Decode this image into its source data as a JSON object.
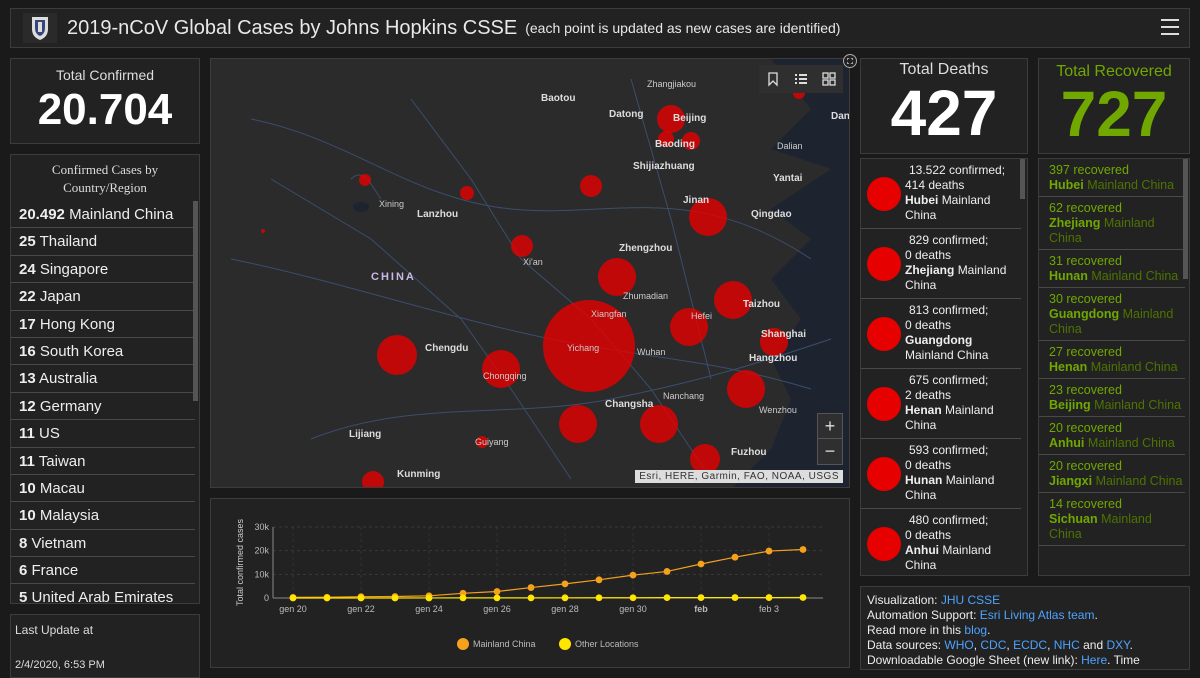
{
  "header": {
    "title": "2019-nCoV Global Cases by Johns Hopkins CSSE",
    "subtitle": "(each point is updated as new cases are identified)"
  },
  "total_confirmed": {
    "label": "Total Confirmed",
    "value": "20.704"
  },
  "country_panel": {
    "title_line1": "Confirmed Cases by",
    "title_line2": "Country/Region",
    "rows": [
      {
        "count": "20.492",
        "name": "Mainland China"
      },
      {
        "count": "25",
        "name": "Thailand"
      },
      {
        "count": "24",
        "name": "Singapore"
      },
      {
        "count": "22",
        "name": "Japan"
      },
      {
        "count": "17",
        "name": "Hong Kong"
      },
      {
        "count": "16",
        "name": "South Korea"
      },
      {
        "count": "13",
        "name": "Australia"
      },
      {
        "count": "12",
        "name": "Germany"
      },
      {
        "count": "11",
        "name": "US"
      },
      {
        "count": "11",
        "name": "Taiwan"
      },
      {
        "count": "10",
        "name": "Macau"
      },
      {
        "count": "10",
        "name": "Malaysia"
      },
      {
        "count": "8",
        "name": "Vietnam"
      },
      {
        "count": "6",
        "name": "France"
      },
      {
        "count": "5",
        "name": "United Arab Emirates"
      }
    ]
  },
  "last_update": {
    "label": "Last Update at",
    "value": "2/4/2020, 6:53 PM"
  },
  "map": {
    "country_label": "CHINA",
    "attribution": "Esri, HERE, Garmin, FAO, NOAA, USGS",
    "zoom_in": "+",
    "zoom_out": "−",
    "cities": {
      "baotou": "Baotou",
      "zhangjiakou": "Zhangjiakou",
      "datong": "Datong",
      "beijing": "Beijing",
      "baoding": "Baoding",
      "dalian": "Dalian",
      "shijiazhuang": "Shijiazhuang",
      "yantai": "Yantai",
      "jinan": "Jinan",
      "qingdao": "Qingdao",
      "xining": "Xining",
      "lanzhou": "Lanzhou",
      "xian": "Xi'an",
      "zhengzhou": "Zhengzhou",
      "zhumadian": "Zhumadian",
      "taizhou": "Taizhou",
      "xiangfan": "Xiangfan",
      "hefei": "Hefei",
      "shanghai": "Shanghai",
      "chengdu": "Chengdu",
      "yichang": "Yichang",
      "wuhan": "Wuhan",
      "hangzhou": "Hangzhou",
      "chongqing": "Chongqing",
      "nanchang": "Nanchang",
      "wenzhou": "Wenzhou",
      "changsha": "Changsha",
      "lijiang": "Lijiang",
      "guiyang": "Guiyang",
      "fuzhou": "Fuzhou",
      "kunming": "Kunming",
      "dan": "Dan"
    }
  },
  "chart_data": {
    "type": "line",
    "ylabel": "Total confirmed cases",
    "yticks": [
      "0",
      "10k",
      "20k",
      "30k"
    ],
    "ylim": [
      0,
      30000
    ],
    "xtick_labels": [
      "gen 20",
      "gen 22",
      "gen 24",
      "gen 26",
      "gen 28",
      "gen 30",
      "feb",
      "feb 3"
    ],
    "x": [
      "gen 20",
      "gen 21",
      "gen 22",
      "gen 23",
      "gen 24",
      "gen 25",
      "gen 26",
      "gen 27",
      "gen 28",
      "gen 29",
      "gen 30",
      "gen 31",
      "feb 1",
      "feb 2",
      "feb 3",
      "feb 4"
    ],
    "series": [
      {
        "name": "Mainland China",
        "color": "#f5a11c",
        "values": [
          278,
          326,
          547,
          639,
          916,
          1979,
          2737,
          4409,
          5970,
          7678,
          9658,
          11221,
          14375,
          17238,
          19827,
          20492
        ]
      },
      {
        "name": "Other Locations",
        "color": "#ffe600",
        "values": [
          4,
          6,
          8,
          14,
          25,
          40,
          57,
          64,
          87,
          105,
          118,
          153,
          173,
          183,
          188,
          212
        ]
      }
    ]
  },
  "total_deaths": {
    "label": "Total Deaths",
    "value": "427"
  },
  "deaths_list": [
    {
      "confirmed": "13.522 confirmed;",
      "deaths": "414 deaths",
      "province": "Hubei",
      "region": "Mainland China"
    },
    {
      "confirmed": "829 confirmed;",
      "deaths": "0 deaths",
      "province": "Zhejiang",
      "region": "Mainland China"
    },
    {
      "confirmed": "813 confirmed;",
      "deaths": "0 deaths",
      "province": "Guangdong",
      "region": "Mainland China"
    },
    {
      "confirmed": "675 confirmed;",
      "deaths": "2 deaths",
      "province": "Henan",
      "region": "Mainland China"
    },
    {
      "confirmed": "593 confirmed;",
      "deaths": "0 deaths",
      "province": "Hunan",
      "region": "Mainland China"
    },
    {
      "confirmed": "480 confirmed;",
      "deaths": "0 deaths",
      "province": "Anhui",
      "region": "Mainland China"
    }
  ],
  "total_recovered": {
    "label": "Total Recovered",
    "value": "727"
  },
  "recovered_list": [
    {
      "count": "397 recovered",
      "province": "Hubei",
      "region": "Mainland China"
    },
    {
      "count": "62 recovered",
      "province": "Zhejiang",
      "region": "Mainland China"
    },
    {
      "count": "31 recovered",
      "province": "Hunan",
      "region": "Mainland China"
    },
    {
      "count": "30 recovered",
      "province": "Guangdong",
      "region": "Mainland China"
    },
    {
      "count": "27 recovered",
      "province": "Henan",
      "region": "Mainland China"
    },
    {
      "count": "23 recovered",
      "province": "Beijing",
      "region": "Mainland China"
    },
    {
      "count": "20 recovered",
      "province": "Anhui",
      "region": "Mainland China"
    },
    {
      "count": "20 recovered",
      "province": "Jiangxi",
      "region": "Mainland China"
    },
    {
      "count": "14 recovered",
      "province": "Sichuan",
      "region": "Mainland China"
    }
  ],
  "info": {
    "visualization_label": "Visualization:",
    "visualization_link": "JHU CSSE",
    "automation_label": "Automation Support:",
    "automation_link": "Esri Living Atlas team",
    "readmore_label": "Read more in this",
    "readmore_link": "blog",
    "sources_label": "Data sources:",
    "sources": [
      "WHO",
      "CDC",
      "ECDC",
      "NHC",
      "DXY"
    ],
    "sources_and": "and",
    "download_label": "Downloadable Google Sheet (new link):",
    "download_link": "Here",
    "download_tail": ". Time"
  }
}
